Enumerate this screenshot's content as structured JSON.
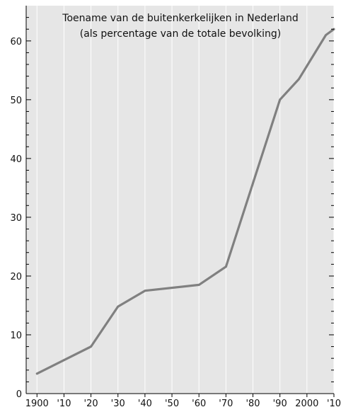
{
  "chart_data": {
    "type": "line",
    "title_lines": [
      "Toename van de buitenkerkelijken in Nederland",
      "(als percentage van de totale bevolking)"
    ],
    "xlabel": "",
    "ylabel": "",
    "xlim": [
      1896,
      2010
    ],
    "ylim": [
      0,
      66
    ],
    "x_ticks": [
      {
        "value": 1900,
        "label": "1900"
      },
      {
        "value": 1910,
        "label": "'10"
      },
      {
        "value": 1920,
        "label": "'20"
      },
      {
        "value": 1930,
        "label": "'30"
      },
      {
        "value": 1940,
        "label": "'40"
      },
      {
        "value": 1950,
        "label": "'50"
      },
      {
        "value": 1960,
        "label": "'60"
      },
      {
        "value": 1970,
        "label": "'70"
      },
      {
        "value": 1980,
        "label": "'80"
      },
      {
        "value": 1990,
        "label": "'90"
      },
      {
        "value": 2000,
        "label": "2000"
      },
      {
        "value": 2010,
        "label": "'10"
      }
    ],
    "y_ticks": [
      0,
      10,
      20,
      30,
      40,
      50,
      60
    ],
    "grid": true,
    "legend": "none",
    "series": [
      {
        "x": [
          1900,
          1920,
          1930,
          1940,
          1960,
          1970,
          1990,
          1997,
          2007,
          2010
        ],
        "values": [
          3.4,
          8.0,
          14.8,
          17.5,
          18.5,
          21.6,
          50.0,
          53.5,
          61.0,
          62.0
        ],
        "color": "#808080"
      }
    ],
    "colors": {
      "plot_background": "#e6e6e6",
      "gridline": "#ffffff",
      "axis": "#000000",
      "line": "#808080"
    }
  }
}
